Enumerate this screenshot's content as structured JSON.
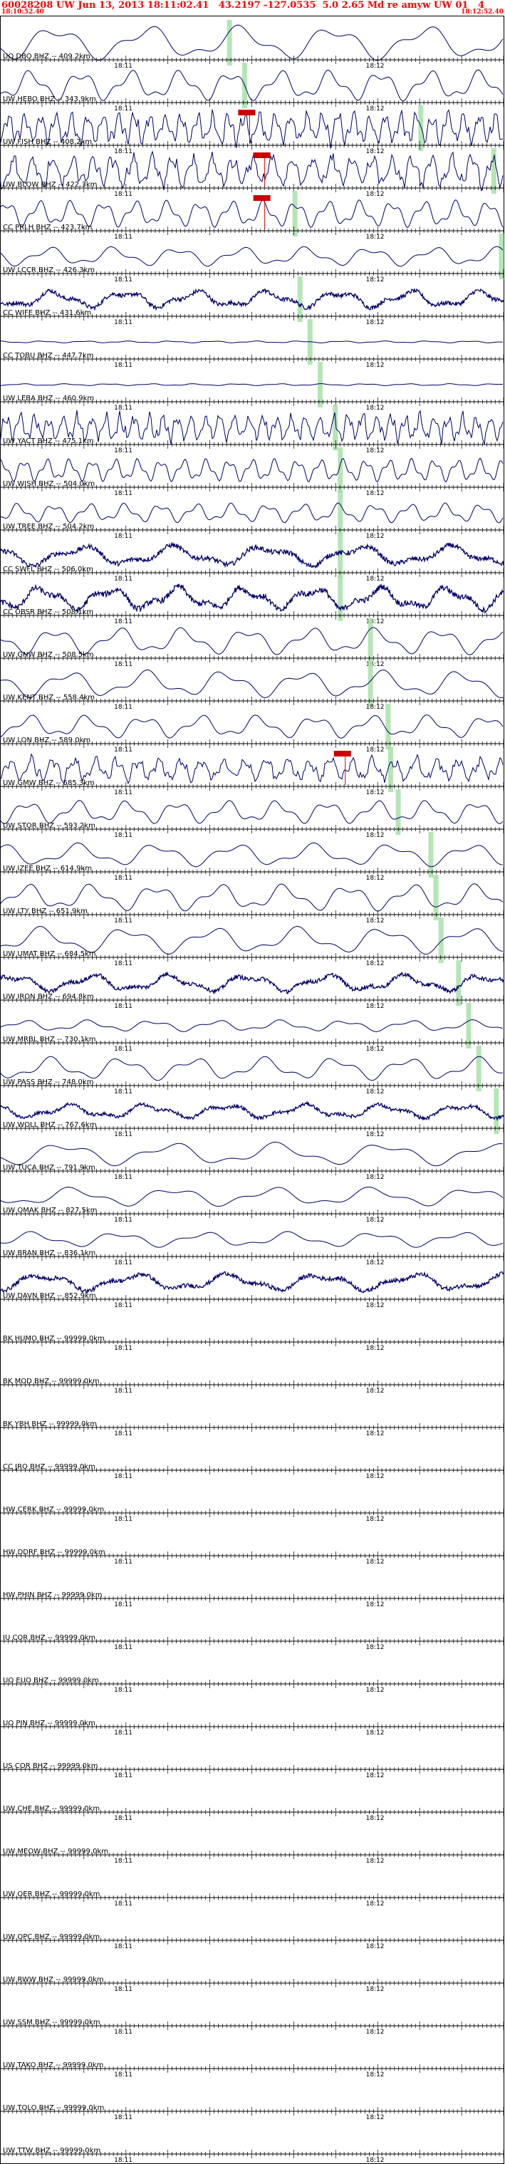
{
  "header": {
    "title": "60028208 UW Jun 13, 2013 18:11:02.41   43.2197 -127.0535  5.0 2.65 Md re amyw UW 01   4",
    "start_time": "18:10:52.40",
    "end_time": "18:12:52.40"
  },
  "colors": {
    "header_text": "#ff0000",
    "trace": "#000066",
    "pick_box": "#cc0000",
    "travel_time_band": "#a8e0a8",
    "axis": "#000000"
  },
  "chart_data": {
    "type": "seismogram-record-section",
    "time_axis": {
      "start": "18:10:52.40",
      "end": "18:12:52.40",
      "minute_labels": [
        "18:11",
        "18:12"
      ]
    },
    "channels": [
      {
        "label": "UO DBO BHZ -- 409.2km",
        "kind": "smooth",
        "amp": 0.9,
        "per": 130,
        "band": 0.455,
        "pick": null
      },
      {
        "label": "UW HEBO BHZ -- 343.9km",
        "kind": "smooth",
        "amp": 0.8,
        "per": 70,
        "band": 0.485,
        "pick": null
      },
      {
        "label": "UW FISH BHZ -- 408.2km",
        "kind": "busy",
        "amp": 0.8,
        "per": 22,
        "band": 0.835,
        "pick": 0.49
      },
      {
        "label": "UW BLOW BHZ -- 422.3km",
        "kind": "busy",
        "amp": 0.8,
        "per": 28,
        "band": 0.98,
        "pick": 0.52
      },
      {
        "label": "CC PRLH BHZ -- 423.7km",
        "kind": "smooth",
        "amp": 0.7,
        "per": 45,
        "band": 0.585,
        "pick": 0.52
      },
      {
        "label": "UW LCCR BHZ -- 426.3km",
        "kind": "smooth",
        "amp": 0.5,
        "per": 90,
        "band": 0.995,
        "pick": null
      },
      {
        "label": "CC WIFE BHZ -- 431.6km",
        "kind": "noisy",
        "amp": 0.6,
        "per": 100,
        "band": 0.595,
        "pick": null
      },
      {
        "label": "CC TOBU BHZ -- 447.7km",
        "kind": "flat",
        "amp": 0.05,
        "per": 60,
        "band": 0.615,
        "pick": null
      },
      {
        "label": "UW LEBA BHZ -- 460.9km",
        "kind": "flat",
        "amp": 0.05,
        "per": 60,
        "band": 0.635,
        "pick": null
      },
      {
        "label": "UW YACT BHZ -- 475.1km",
        "kind": "busy",
        "amp": 0.7,
        "per": 20,
        "band": 0.665,
        "pick": null
      },
      {
        "label": "UW WISH BHZ -- 504.0km",
        "kind": "smooth",
        "amp": 0.6,
        "per": 32,
        "band": 0.675,
        "pick": null
      },
      {
        "label": "UW TREE BHZ -- 504.2km",
        "kind": "smooth",
        "amp": 0.5,
        "per": 50,
        "band": 0.675,
        "pick": null
      },
      {
        "label": "CC SWFL BHZ -- 506.0km",
        "kind": "noisy",
        "amp": 0.7,
        "per": 130,
        "band": 0.675,
        "pick": null
      },
      {
        "label": "CC OBSR BHZ -- 508.1km",
        "kind": "noisy",
        "amp": 0.8,
        "per": 95,
        "band": 0.675,
        "pick": null
      },
      {
        "label": "UW GNW BHZ -- 508.5km",
        "kind": "smooth",
        "amp": 0.7,
        "per": 90,
        "band": 0.735,
        "pick": null
      },
      {
        "label": "UW KENT BHZ -- 558.4km",
        "kind": "smooth",
        "amp": 0.7,
        "per": 110,
        "band": 0.735,
        "pick": null
      },
      {
        "label": "UW LON BHZ -- 589.0km",
        "kind": "smooth",
        "amp": 0.6,
        "per": 80,
        "band": 0.77,
        "pick": null
      },
      {
        "label": "UW GMW BHZ -- 585.3km",
        "kind": "busy",
        "amp": 0.6,
        "per": 30,
        "band": 0.775,
        "pick": 0.68
      },
      {
        "label": "UW STOR BHZ -- 593.2km",
        "kind": "smooth",
        "amp": 0.6,
        "per": 70,
        "band": 0.79,
        "pick": null
      },
      {
        "label": "UW IZEE BHZ -- 614.9km",
        "kind": "smooth",
        "amp": 0.6,
        "per": 110,
        "band": 0.855,
        "pick": null
      },
      {
        "label": "UW LTY BHZ -- 651.9km",
        "kind": "smooth",
        "amp": 0.7,
        "per": 90,
        "band": 0.865,
        "pick": null
      },
      {
        "label": "UW UMAT BHZ -- 684.5km",
        "kind": "smooth",
        "amp": 0.7,
        "per": 120,
        "band": 0.875,
        "pick": null
      },
      {
        "label": "UW IRON BHZ -- 694.8km",
        "kind": "noisy",
        "amp": 0.6,
        "per": 110,
        "band": 0.91,
        "pick": null
      },
      {
        "label": "UW MRBL BHZ -- 730.1km",
        "kind": "smooth",
        "amp": 0.3,
        "per": 90,
        "band": 0.93,
        "pick": null
      },
      {
        "label": "UW PASS BHZ -- 748.0km",
        "kind": "smooth",
        "amp": 0.6,
        "per": 100,
        "band": 0.95,
        "pick": null
      },
      {
        "label": "UW WOLL BHZ -- 767.6km",
        "kind": "noisy",
        "amp": 0.5,
        "per": 110,
        "band": 0.985,
        "pick": null
      },
      {
        "label": "UW TUCA BHZ -- 791.9km",
        "kind": "smooth",
        "amp": 0.6,
        "per": 150,
        "band": null,
        "pick": null
      },
      {
        "label": "UW OMAK BHZ -- 827.5km",
        "kind": "smooth",
        "amp": 0.5,
        "per": 140,
        "band": null,
        "pick": null
      },
      {
        "label": "UW BRAN BHZ -- 836.1km",
        "kind": "smooth",
        "amp": 0.4,
        "per": 120,
        "band": null,
        "pick": null
      },
      {
        "label": "UW DAVN BHZ -- 852.9km",
        "kind": "noisy",
        "amp": 0.6,
        "per": 130,
        "band": null,
        "pick": null
      },
      {
        "label": "BK HUMO BHZ -- 99999.0km",
        "kind": "flat",
        "amp": 0,
        "per": 1,
        "band": null,
        "pick": null
      },
      {
        "label": "BK MOD BHZ -- 99999.0km",
        "kind": "flat",
        "amp": 0,
        "per": 1,
        "band": null,
        "pick": null
      },
      {
        "label": "BK YBH BHZ -- 99999.0km",
        "kind": "flat",
        "amp": 0,
        "per": 1,
        "band": null,
        "pick": null
      },
      {
        "label": "CC JRO BHZ -- 99999.0km",
        "kind": "flat",
        "amp": 0,
        "per": 1,
        "band": null,
        "pick": null
      },
      {
        "label": "HW CERK BHZ -- 99999.0km",
        "kind": "flat",
        "amp": 0,
        "per": 1,
        "band": null,
        "pick": null
      },
      {
        "label": "HW DDRF BHZ -- 99999.0km",
        "kind": "flat",
        "amp": 0,
        "per": 1,
        "band": null,
        "pick": null
      },
      {
        "label": "HW PHIN BHZ -- 99999.0km",
        "kind": "flat",
        "amp": 0,
        "per": 1,
        "band": null,
        "pick": null
      },
      {
        "label": "IU COR BHZ -- 99999.0km",
        "kind": "flat",
        "amp": 0,
        "per": 1,
        "band": null,
        "pick": null
      },
      {
        "label": "UO EUO BHZ -- 99999.0km",
        "kind": "flat",
        "amp": 0,
        "per": 1,
        "band": null,
        "pick": null
      },
      {
        "label": "UO PIN BHZ -- 99999.0km",
        "kind": "flat",
        "amp": 0,
        "per": 1,
        "band": null,
        "pick": null
      },
      {
        "label": "US COR BHZ -- 99999.0km",
        "kind": "flat",
        "amp": 0,
        "per": 1,
        "band": null,
        "pick": null
      },
      {
        "label": "UW CHE BHZ -- 99999.0km",
        "kind": "flat",
        "amp": 0,
        "per": 1,
        "band": null,
        "pick": null
      },
      {
        "label": "UW MEOW BHZ -- 99999.0km",
        "kind": "flat",
        "amp": 0,
        "per": 1,
        "band": null,
        "pick": null
      },
      {
        "label": "UW OER BHZ -- 99999.0km",
        "kind": "flat",
        "amp": 0,
        "per": 1,
        "band": null,
        "pick": null
      },
      {
        "label": "UW OPC BHZ -- 99999.0km",
        "kind": "flat",
        "amp": 0,
        "per": 1,
        "band": null,
        "pick": null
      },
      {
        "label": "UW RWW BHZ -- 99999.0km",
        "kind": "flat",
        "amp": 0,
        "per": 1,
        "band": null,
        "pick": null
      },
      {
        "label": "UW SSM BHZ -- 99999.0km",
        "kind": "flat",
        "amp": 0,
        "per": 1,
        "band": null,
        "pick": null
      },
      {
        "label": "UW TAKO BHZ -- 99999.0km",
        "kind": "flat",
        "amp": 0,
        "per": 1,
        "band": null,
        "pick": null
      },
      {
        "label": "UW TOLO BHZ -- 99999.0km",
        "kind": "flat",
        "amp": 0,
        "per": 1,
        "band": null,
        "pick": null
      },
      {
        "label": "UW TTW BHZ -- 99999.0km",
        "kind": "flat",
        "amp": 0,
        "per": 1,
        "band": null,
        "pick": null
      }
    ]
  }
}
